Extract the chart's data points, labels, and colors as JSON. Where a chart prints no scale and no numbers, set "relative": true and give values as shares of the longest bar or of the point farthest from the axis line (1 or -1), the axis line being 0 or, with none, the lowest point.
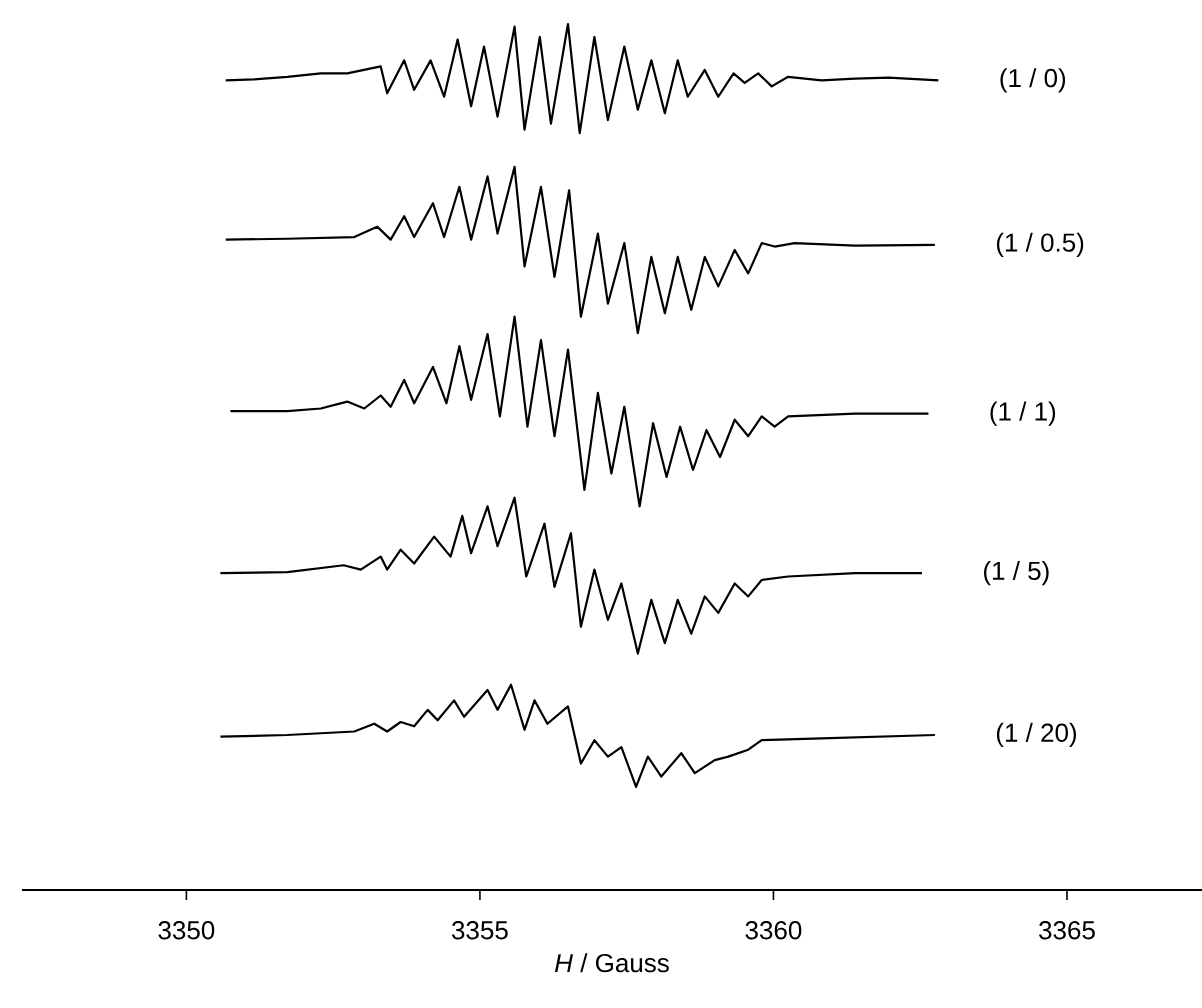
{
  "chart_data": {
    "type": "line",
    "relative": true,
    "xlabel": "*H* / Gauss",
    "xlim": [
      3347.2,
      3367.3
    ],
    "xticks": [
      3350,
      3355,
      3360,
      3365
    ],
    "tick_labels": "x",
    "series": [
      {
        "name": "(1 / 0)",
        "color": "#000000",
        "x": [
          3350.67,
          3351.15,
          3351.72,
          3352.29,
          3352.74,
          3353.31,
          3353.42,
          3353.71,
          3353.88,
          3354.16,
          3354.39,
          3354.62,
          3354.85,
          3355.07,
          3355.3,
          3355.59,
          3355.76,
          3356.02,
          3356.21,
          3356.5,
          3356.7,
          3356.95,
          3357.18,
          3357.46,
          3357.69,
          3357.92,
          3358.15,
          3358.37,
          3358.54,
          3358.83,
          3359.06,
          3359.32,
          3359.51,
          3359.74,
          3359.97,
          3360.25,
          3360.82,
          3361.39,
          3361.96,
          3362.81
        ],
        "values": [
          0.935,
          0.936,
          0.939,
          0.943,
          0.943,
          0.951,
          0.92,
          0.958,
          0.924,
          0.958,
          0.916,
          0.982,
          0.905,
          0.974,
          0.893,
          0.997,
          0.878,
          0.985,
          0.885,
          1.0,
          0.874,
          0.985,
          0.889,
          0.974,
          0.901,
          0.958,
          0.897,
          0.958,
          0.916,
          0.947,
          0.916,
          0.943,
          0.932,
          0.943,
          0.928,
          0.939,
          0.935,
          0.937,
          0.938,
          0.935
        ]
      },
      {
        "name": "(1 / 0.5)",
        "color": "#000000",
        "x": [
          3350.67,
          3351.72,
          3352.86,
          3353.25,
          3353.48,
          3353.71,
          3353.88,
          3354.2,
          3354.39,
          3354.65,
          3354.85,
          3355.13,
          3355.3,
          3355.59,
          3355.76,
          3356.04,
          3356.27,
          3356.52,
          3356.72,
          3357.01,
          3357.18,
          3357.46,
          3357.69,
          3357.92,
          3358.15,
          3358.37,
          3358.6,
          3358.83,
          3359.06,
          3359.34,
          3359.57,
          3359.8,
          3360.02,
          3360.36,
          3361.39,
          3362.75
        ],
        "values": [
          0.751,
          0.752,
          0.754,
          0.766,
          0.751,
          0.778,
          0.754,
          0.793,
          0.754,
          0.812,
          0.751,
          0.824,
          0.758,
          0.835,
          0.72,
          0.812,
          0.708,
          0.808,
          0.662,
          0.758,
          0.677,
          0.747,
          0.643,
          0.731,
          0.666,
          0.731,
          0.67,
          0.731,
          0.697,
          0.739,
          0.712,
          0.747,
          0.743,
          0.747,
          0.744,
          0.745
        ]
      },
      {
        "name": "(1 / 1)",
        "color": "#000000",
        "x": [
          3350.75,
          3351.72,
          3352.29,
          3352.74,
          3353.03,
          3353.31,
          3353.48,
          3353.71,
          3353.88,
          3354.2,
          3354.43,
          3354.65,
          3354.85,
          3355.13,
          3355.34,
          3355.59,
          3355.81,
          3356.04,
          3356.27,
          3356.5,
          3356.78,
          3357.01,
          3357.24,
          3357.46,
          3357.72,
          3357.95,
          3358.18,
          3358.41,
          3358.63,
          3358.86,
          3359.09,
          3359.34,
          3359.57,
          3359.8,
          3360.02,
          3360.25,
          3361.39,
          3362.64
        ],
        "values": [
          0.553,
          0.553,
          0.556,
          0.564,
          0.556,
          0.571,
          0.558,
          0.589,
          0.562,
          0.604,
          0.562,
          0.628,
          0.566,
          0.642,
          0.547,
          0.662,
          0.535,
          0.635,
          0.524,
          0.624,
          0.462,
          0.574,
          0.481,
          0.558,
          0.443,
          0.539,
          0.477,
          0.535,
          0.485,
          0.531,
          0.5,
          0.543,
          0.524,
          0.547,
          0.535,
          0.547,
          0.55,
          0.55
        ]
      },
      {
        "name": "(1 / 5)",
        "color": "#000000",
        "x": [
          3350.58,
          3351.72,
          3352.68,
          3352.97,
          3353.31,
          3353.42,
          3353.65,
          3353.88,
          3354.22,
          3354.5,
          3354.7,
          3354.85,
          3355.13,
          3355.3,
          3355.59,
          3355.79,
          3356.1,
          3356.27,
          3356.55,
          3356.72,
          3356.95,
          3357.18,
          3357.41,
          3357.69,
          3357.92,
          3358.15,
          3358.37,
          3358.6,
          3358.83,
          3359.06,
          3359.34,
          3359.57,
          3359.8,
          3360.25,
          3361.39,
          3362.53
        ],
        "values": [
          0.366,
          0.367,
          0.375,
          0.37,
          0.385,
          0.37,
          0.393,
          0.377,
          0.408,
          0.385,
          0.432,
          0.389,
          0.443,
          0.397,
          0.453,
          0.362,
          0.423,
          0.35,
          0.412,
          0.304,
          0.37,
          0.312,
          0.354,
          0.273,
          0.335,
          0.285,
          0.335,
          0.296,
          0.339,
          0.32,
          0.354,
          0.339,
          0.358,
          0.362,
          0.366,
          0.366
        ]
      },
      {
        "name": "(1 / 20)",
        "color": "#000000",
        "x": [
          3350.58,
          3351.72,
          3352.86,
          3353.2,
          3353.42,
          3353.65,
          3353.88,
          3354.11,
          3354.28,
          3354.56,
          3354.73,
          3355.13,
          3355.3,
          3355.53,
          3355.76,
          3355.93,
          3356.15,
          3356.5,
          3356.72,
          3356.95,
          3357.18,
          3357.41,
          3357.66,
          3357.86,
          3358.09,
          3358.43,
          3358.66,
          3359.0,
          3359.23,
          3359.57,
          3359.8,
          3360.82,
          3362.75
        ],
        "values": [
          0.177,
          0.179,
          0.183,
          0.192,
          0.183,
          0.194,
          0.189,
          0.208,
          0.196,
          0.219,
          0.2,
          0.231,
          0.208,
          0.237,
          0.185,
          0.219,
          0.192,
          0.212,
          0.146,
          0.173,
          0.154,
          0.165,
          0.119,
          0.154,
          0.131,
          0.158,
          0.135,
          0.15,
          0.154,
          0.162,
          0.173,
          0.175,
          0.179
        ]
      }
    ]
  }
}
